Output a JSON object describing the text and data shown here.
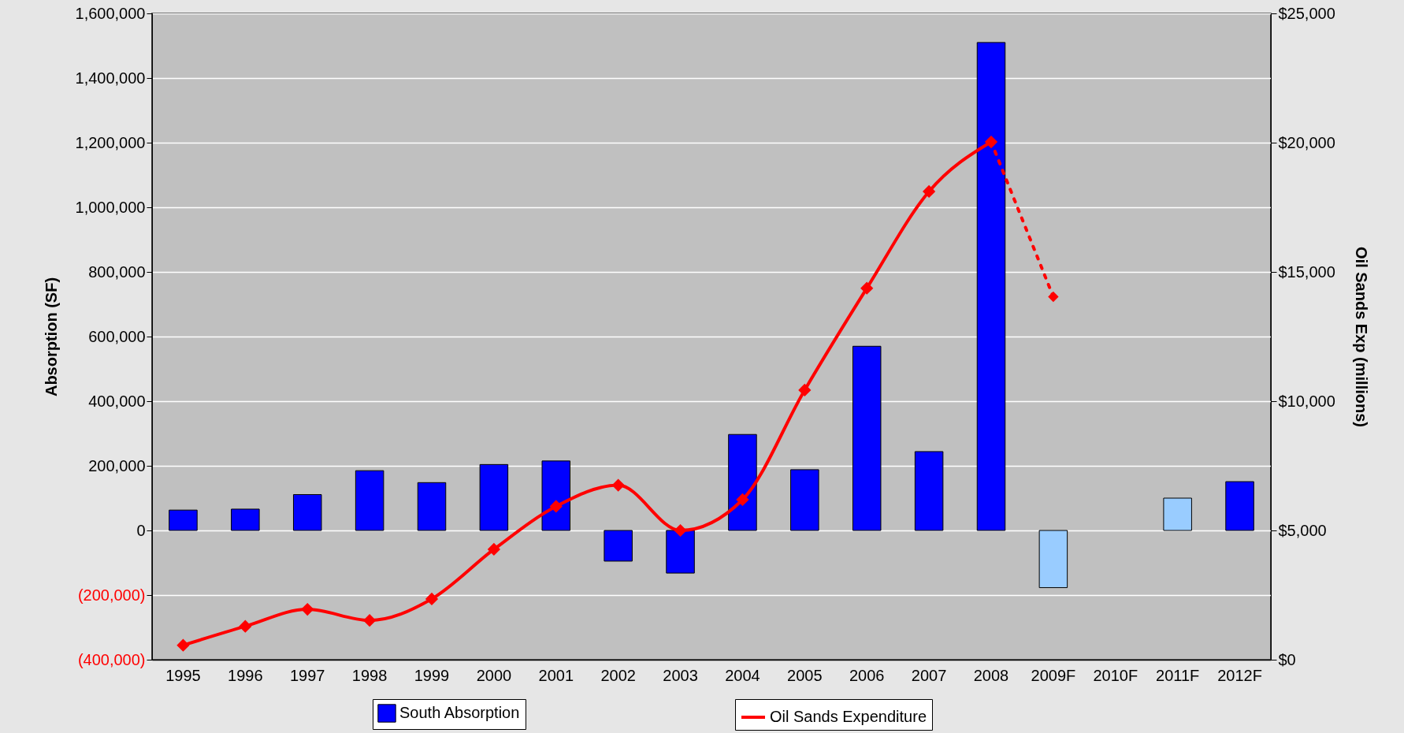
{
  "chart_data": {
    "type": "bar",
    "categories": [
      "1995",
      "1996",
      "1997",
      "1998",
      "1999",
      "2000",
      "2001",
      "2002",
      "2003",
      "2004",
      "2005",
      "2006",
      "2007",
      "2008",
      "2009F",
      "2010F",
      "2011F",
      "2012F"
    ],
    "ylabel": "Absorption (SF)",
    "y2label": "Oil Sands Exp (millions)",
    "ylim": [
      -400000,
      1600000
    ],
    "yticks": [
      {
        "value": -400000,
        "label": "(400,000)"
      },
      {
        "value": -200000,
        "label": "(200,000)"
      },
      0,
      {
        "value": 200000,
        "label": "200,000"
      },
      {
        "value": 400000,
        "label": "400,000"
      },
      {
        "value": 600000,
        "label": "600,000"
      },
      {
        "value": 800000,
        "label": "800,000"
      },
      {
        "value": 1000000,
        "label": "1,000,000"
      },
      {
        "value": 1200000,
        "label": "1,200,000"
      },
      {
        "value": 1400000,
        "label": "1,400,000"
      },
      {
        "value": 1600000,
        "label": "1,600,000"
      }
    ],
    "y2lim": [
      0,
      25000
    ],
    "y2ticks": [
      {
        "value": 0,
        "label": "$0"
      },
      {
        "value": 5000,
        "label": "$5,000"
      },
      {
        "value": 10000,
        "label": "$10,000"
      },
      {
        "value": 15000,
        "label": "$15,000"
      },
      {
        "value": 20000,
        "label": "$20,000"
      },
      {
        "value": 25000,
        "label": "$25,000"
      }
    ],
    "grid": "y",
    "legend": "bottom",
    "series": [
      {
        "name": "South Absorption",
        "color": "#0000ff",
        "colors": [
          "#0000ff",
          "#0000ff",
          "#0000ff",
          "#0000ff",
          "#0000ff",
          "#0000ff",
          "#0000ff",
          "#0000ff",
          "#0000ff",
          "#0000ff",
          "#0000ff",
          "#0000ff",
          "#0000ff",
          "#0000ff",
          "#99ccff",
          null,
          "#99ccff",
          "#0000ff"
        ],
        "values": [
          63000,
          66000,
          111000,
          185000,
          148000,
          204000,
          215000,
          -95000,
          -132000,
          297000,
          188000,
          570000,
          244000,
          1510000,
          -177000,
          null,
          100000,
          151000
        ]
      },
      {
        "name": "Oil Sands Expenditure",
        "type": "line",
        "axis": "y2",
        "color": "#ff0000",
        "marker": "diamond",
        "line_style": "solid",
        "values": [
          560,
          1290,
          1950,
          1520,
          2350,
          4270,
          5930,
          6750,
          5000,
          6190,
          10430,
          14370,
          18110,
          20030,
          null,
          null,
          null,
          null
        ]
      },
      {
        "type": "line",
        "axis": "y2",
        "color": "#ff0000",
        "marker": "diamond",
        "line_style": "dotted",
        "values": [
          null,
          null,
          null,
          null,
          null,
          null,
          null,
          null,
          null,
          null,
          null,
          null,
          null,
          20030,
          14040,
          null,
          null,
          null
        ]
      }
    ]
  }
}
